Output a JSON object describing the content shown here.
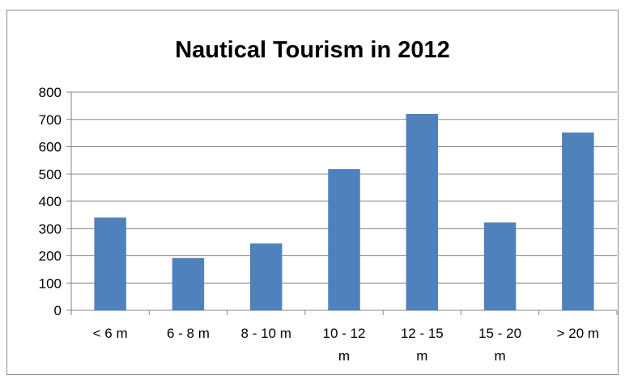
{
  "chart_data": {
    "type": "bar",
    "title": "Nautical Tourism in 2012",
    "categories": [
      [
        "< 6 m"
      ],
      [
        "6 - 8 m"
      ],
      [
        "8 - 10 m"
      ],
      [
        "10 - 12",
        "m"
      ],
      [
        "12 - 15",
        "m"
      ],
      [
        "15 - 20",
        "m"
      ],
      [
        "> 20 m"
      ]
    ],
    "values": [
      340,
      192,
      245,
      518,
      720,
      322,
      652
    ],
    "ylim": [
      0,
      800
    ],
    "yticks": [
      0,
      100,
      200,
      300,
      400,
      500,
      600,
      700,
      800
    ],
    "grid": true,
    "legend": "none",
    "bar_color": "#4f81bd",
    "grid_color": "#868686",
    "axis_color": "#868686"
  }
}
